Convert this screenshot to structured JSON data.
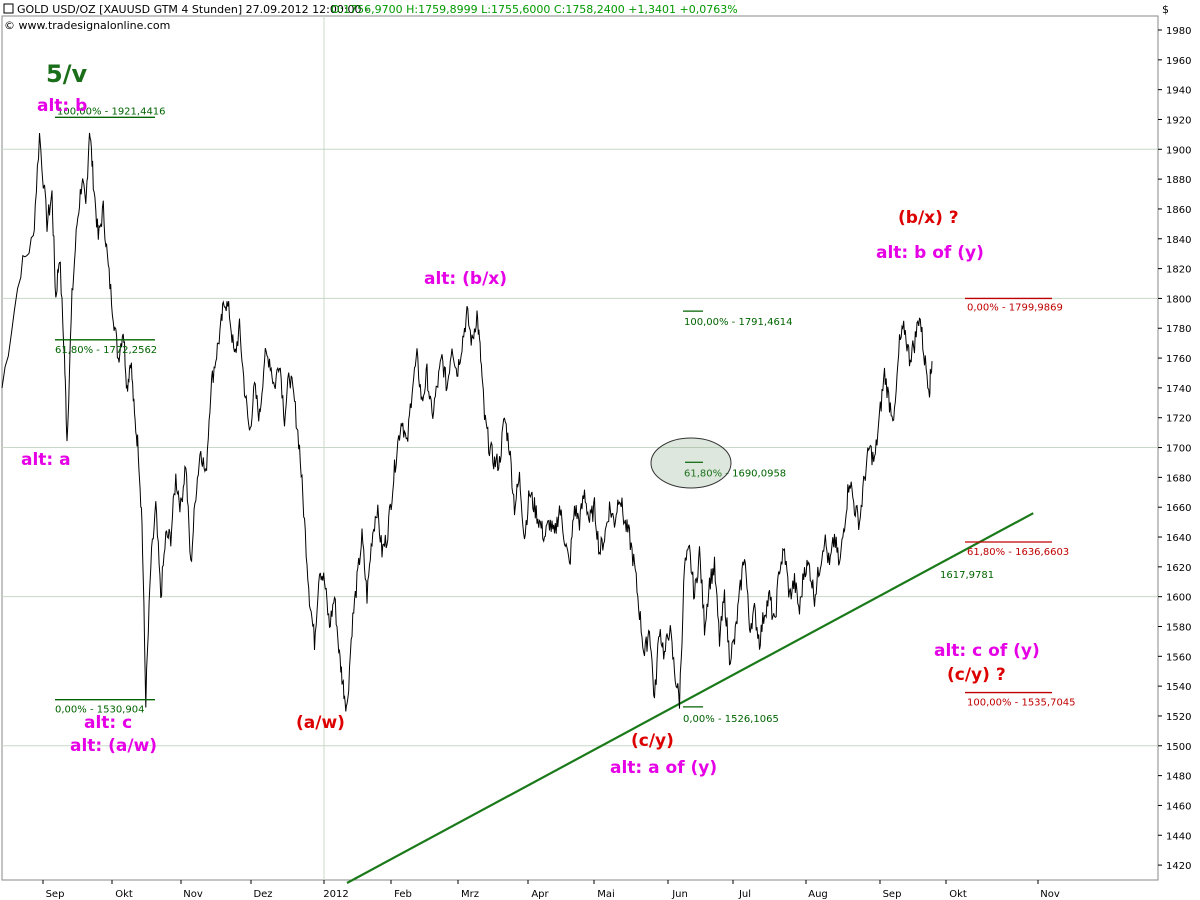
{
  "header": {
    "title": "GOLD USD/OZ [XAUUSD GTM  4 Stunden] 27.09.2012 12:00:00 -",
    "ohlc": "O:1756,9700 H:1759,8999 L:1755,6000 C:1758,2400 +1,3401 +0,0763%",
    "copyright": "© www.tradesignalonline.com",
    "currency": "$"
  },
  "colors": {
    "price": "#000000",
    "grid": "#c8d8c8",
    "green_fib": "#006400",
    "red_fib": "#c00000",
    "magenta": "#e600e6",
    "red_label": "#dd0000",
    "dark_green": "#1a6e1a",
    "trendline": "#1a7a1a"
  },
  "chart_data": {
    "type": "line",
    "ylim": [
      1410,
      1990
    ],
    "y_ticks": [
      1420,
      1440,
      1460,
      1480,
      1500,
      1520,
      1540,
      1560,
      1580,
      1600,
      1620,
      1640,
      1660,
      1680,
      1700,
      1720,
      1740,
      1760,
      1780,
      1800,
      1820,
      1840,
      1860,
      1880,
      1900,
      1920,
      1940,
      1960,
      1980
    ],
    "x_ticks": [
      "Sep",
      "Okt",
      "Nov",
      "Dez",
      "2012",
      "Feb",
      "Mrz",
      "Apr",
      "Mai",
      "Jun",
      "Jul",
      "Aug",
      "Sep",
      "Okt",
      "Nov"
    ],
    "price_path": [
      [
        0,
        1740
      ],
      [
        1.5,
        1820
      ],
      [
        2.5,
        1840
      ],
      [
        3,
        1910
      ],
      [
        3.6,
        1850
      ],
      [
        4,
        1870
      ],
      [
        4.3,
        1800
      ],
      [
        4.6,
        1830
      ],
      [
        5,
        1760
      ],
      [
        5.2,
        1705
      ],
      [
        5.6,
        1800
      ],
      [
        6,
        1850
      ],
      [
        6.4,
        1880
      ],
      [
        6.7,
        1860
      ],
      [
        7,
        1915
      ],
      [
        7.3,
        1880
      ],
      [
        7.7,
        1840
      ],
      [
        8.1,
        1860
      ],
      [
        8.5,
        1820
      ],
      [
        8.9,
        1790
      ],
      [
        9.3,
        1760
      ],
      [
        9.7,
        1780
      ],
      [
        10,
        1740
      ],
      [
        10.3,
        1760
      ],
      [
        10.6,
        1720
      ],
      [
        10.9,
        1700
      ],
      [
        11.2,
        1650
      ],
      [
        11.5,
        1531
      ],
      [
        11.9,
        1620
      ],
      [
        12.3,
        1660
      ],
      [
        12.7,
        1600
      ],
      [
        13.1,
        1640
      ],
      [
        13.5,
        1640
      ],
      [
        13.9,
        1680
      ],
      [
        14.3,
        1660
      ],
      [
        14.7,
        1690
      ],
      [
        15.1,
        1620
      ],
      [
        15.5,
        1670
      ],
      [
        15.9,
        1700
      ],
      [
        16.3,
        1680
      ],
      [
        16.7,
        1740
      ],
      [
        17.1,
        1760
      ],
      [
        17.5,
        1780
      ],
      [
        17.8,
        1800
      ],
      [
        18.2,
        1790
      ],
      [
        18.6,
        1760
      ],
      [
        19,
        1780
      ],
      [
        19.4,
        1740
      ],
      [
        19.8,
        1710
      ],
      [
        20.2,
        1740
      ],
      [
        20.6,
        1720
      ],
      [
        21,
        1760
      ],
      [
        21.4,
        1760
      ],
      [
        21.8,
        1740
      ],
      [
        22.2,
        1760
      ],
      [
        22.6,
        1720
      ],
      [
        23,
        1750
      ],
      [
        23.4,
        1730
      ],
      [
        23.8,
        1700
      ],
      [
        24.2,
        1650
      ],
      [
        24.6,
        1600
      ],
      [
        25,
        1570
      ],
      [
        25.4,
        1620
      ],
      [
        25.8,
        1610
      ],
      [
        26.2,
        1580
      ],
      [
        26.6,
        1600
      ],
      [
        27,
        1560
      ],
      [
        27.3,
        1540
      ],
      [
        27.6,
        1525
      ],
      [
        28,
        1580
      ],
      [
        28.4,
        1610
      ],
      [
        28.8,
        1640
      ],
      [
        29.2,
        1600
      ],
      [
        29.6,
        1640
      ],
      [
        30,
        1660
      ],
      [
        30.4,
        1630
      ],
      [
        30.8,
        1640
      ],
      [
        31.2,
        1670
      ],
      [
        31.6,
        1700
      ],
      [
        32,
        1720
      ],
      [
        32.4,
        1700
      ],
      [
        32.8,
        1740
      ],
      [
        33.2,
        1760
      ],
      [
        33.6,
        1730
      ],
      [
        34,
        1750
      ],
      [
        34.4,
        1720
      ],
      [
        34.8,
        1740
      ],
      [
        35.2,
        1760
      ],
      [
        35.6,
        1740
      ],
      [
        36,
        1770
      ],
      [
        36.4,
        1750
      ],
      [
        36.8,
        1770
      ],
      [
        37.2,
        1790
      ],
      [
        37.6,
        1770
      ],
      [
        38,
        1790
      ],
      [
        38.3,
        1760
      ],
      [
        38.6,
        1720
      ],
      [
        39,
        1700
      ],
      [
        39.4,
        1690
      ],
      [
        39.8,
        1690
      ],
      [
        40.2,
        1720
      ],
      [
        40.6,
        1700
      ],
      [
        41,
        1660
      ],
      [
        41.4,
        1680
      ],
      [
        41.8,
        1640
      ],
      [
        42.2,
        1670
      ],
      [
        42.6,
        1660
      ],
      [
        43,
        1650
      ],
      [
        43.4,
        1640
      ],
      [
        43.8,
        1650
      ],
      [
        44.2,
        1640
      ],
      [
        44.6,
        1660
      ],
      [
        45,
        1640
      ],
      [
        45.4,
        1620
      ],
      [
        45.8,
        1660
      ],
      [
        46.2,
        1650
      ],
      [
        46.6,
        1670
      ],
      [
        47,
        1650
      ],
      [
        47.4,
        1660
      ],
      [
        47.8,
        1630
      ],
      [
        48.2,
        1640
      ],
      [
        48.6,
        1660
      ],
      [
        49,
        1650
      ],
      [
        49.4,
        1670
      ],
      [
        49.8,
        1650
      ],
      [
        50.2,
        1640
      ],
      [
        50.6,
        1620
      ],
      [
        51,
        1590
      ],
      [
        51.4,
        1560
      ],
      [
        51.8,
        1580
      ],
      [
        52.2,
        1530
      ],
      [
        52.6,
        1580
      ],
      [
        53,
        1560
      ],
      [
        53.4,
        1580
      ],
      [
        53.8,
        1550
      ],
      [
        54.2,
        1530
      ],
      [
        54.6,
        1620
      ],
      [
        55,
        1630
      ],
      [
        55.4,
        1600
      ],
      [
        55.8,
        1630
      ],
      [
        56.2,
        1580
      ],
      [
        56.6,
        1610
      ],
      [
        57,
        1620
      ],
      [
        57.4,
        1570
      ],
      [
        57.8,
        1600
      ],
      [
        58.2,
        1560
      ],
      [
        58.6,
        1570
      ],
      [
        59,
        1600
      ],
      [
        59.4,
        1630
      ],
      [
        59.8,
        1580
      ],
      [
        60.2,
        1590
      ],
      [
        60.6,
        1570
      ],
      [
        61,
        1590
      ],
      [
        61.4,
        1600
      ],
      [
        61.8,
        1580
      ],
      [
        62.2,
        1620
      ],
      [
        62.6,
        1630
      ],
      [
        63,
        1600
      ],
      [
        63.4,
        1610
      ],
      [
        63.8,
        1590
      ],
      [
        64.2,
        1620
      ],
      [
        64.6,
        1620
      ],
      [
        65,
        1600
      ],
      [
        65.4,
        1620
      ],
      [
        65.8,
        1640
      ],
      [
        66.2,
        1620
      ],
      [
        66.6,
        1640
      ],
      [
        67,
        1620
      ],
      [
        67.4,
        1650
      ],
      [
        67.8,
        1680
      ],
      [
        68.2,
        1660
      ],
      [
        68.6,
        1650
      ],
      [
        69,
        1680
      ],
      [
        69.4,
        1700
      ],
      [
        69.8,
        1690
      ],
      [
        70.2,
        1720
      ],
      [
        70.6,
        1750
      ],
      [
        71,
        1730
      ],
      [
        71.4,
        1720
      ],
      [
        71.8,
        1770
      ],
      [
        72.2,
        1780
      ],
      [
        72.6,
        1760
      ],
      [
        73,
        1770
      ],
      [
        73.4,
        1790
      ],
      [
        73.8,
        1760
      ],
      [
        74.2,
        1740
      ],
      [
        74.4,
        1758
      ]
    ],
    "trendline": {
      "start": [
        27.6,
        1408
      ],
      "end": [
        82.5,
        1656
      ]
    },
    "hlines": [
      1500,
      1600,
      1700,
      1800,
      1900
    ],
    "vlines": [
      "2012"
    ],
    "fib_levels": [
      {
        "label": "100,00% - 1921,4416",
        "price": 1921.4416,
        "color": "green"
      },
      {
        "label": "61,80% - 1772,2562",
        "price": 1772.2562,
        "color": "green"
      },
      {
        "label": "0,00% - 1530,904",
        "price": 1530.904,
        "color": "green"
      },
      {
        "label": "100,00% - 1791,4614",
        "price": 1791.4614,
        "color": "green"
      },
      {
        "label": "61,80% - 1690,0958",
        "price": 1690.0958,
        "color": "green"
      },
      {
        "label": "0,00% - 1526,1065",
        "price": 1526.1065,
        "color": "green"
      },
      {
        "label": "0,00% - 1799,9869",
        "price": 1799.9869,
        "color": "red"
      },
      {
        "label": "61,80% - 1636,6603",
        "price": 1636.6603,
        "color": "red"
      },
      {
        "label": "100,00% - 1535,7045",
        "price": 1535.7045,
        "color": "red"
      }
    ],
    "trend_value_label": "1617,9781",
    "annotations": [
      {
        "text": "5/v",
        "color": "dark_green"
      },
      {
        "text": "alt: b",
        "color": "magenta"
      },
      {
        "text": "alt: a",
        "color": "magenta"
      },
      {
        "text": "alt: c",
        "color": "magenta"
      },
      {
        "text": "alt: (a/w)",
        "color": "magenta"
      },
      {
        "text": "(a/w)",
        "color": "red_label"
      },
      {
        "text": "alt: (b/x)",
        "color": "magenta"
      },
      {
        "text": "(c/y)",
        "color": "red_label"
      },
      {
        "text": "alt: a of (y)",
        "color": "magenta"
      },
      {
        "text": "(b/x) ?",
        "color": "red_label"
      },
      {
        "text": "alt: b of (y)",
        "color": "magenta"
      },
      {
        "text": "alt: c of (y)",
        "color": "magenta"
      },
      {
        "text": "(c/y) ?",
        "color": "red_label"
      }
    ]
  }
}
